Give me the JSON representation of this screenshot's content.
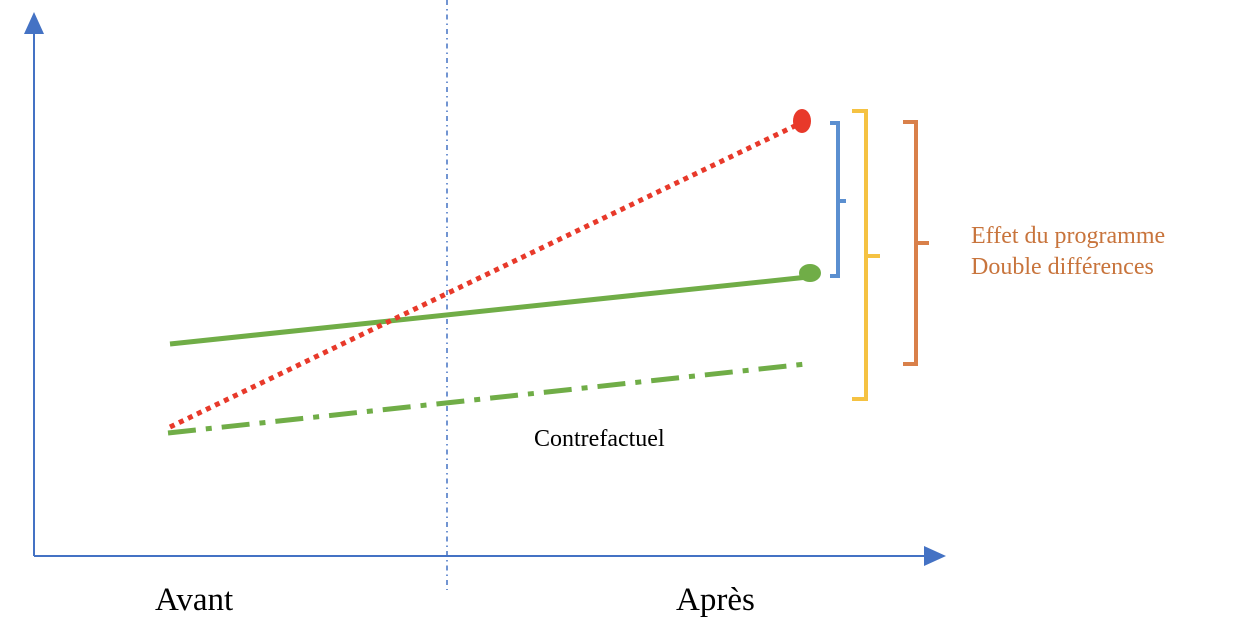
{
  "labels": {
    "x_before": "Avant",
    "x_after": "Après",
    "counterfactual": "Contrefactuel",
    "effect_line1": "Effet du programme",
    "effect_line2": "Double différences"
  },
  "colors": {
    "axis": "#4472C4",
    "treated": "#E8392A",
    "control": "#70AD47",
    "counterfactual": "#70AD47",
    "bracket_small": "#5B8FD0",
    "bracket_large": "#F5C242",
    "bracket_effect": "#D9804A",
    "effect_text": "#C8743C",
    "text": "#000000"
  }
}
